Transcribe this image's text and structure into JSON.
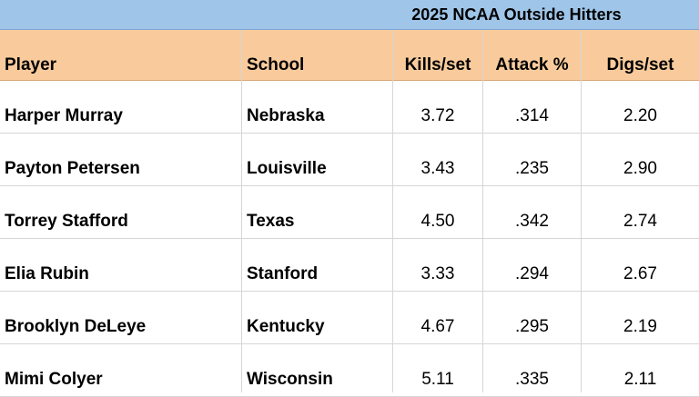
{
  "title": "2025 NCAA Outside Hitters",
  "headers": {
    "player": "Player",
    "school": "School",
    "kills": "Kills/set",
    "attack": "Attack %",
    "digs": "Digs/set"
  },
  "rows": [
    {
      "player": "Harper Murray",
      "school": "Nebraska",
      "kills": "3.72",
      "attack": ".314",
      "digs": "2.20"
    },
    {
      "player": "Payton Petersen",
      "school": "Louisville",
      "kills": "3.43",
      "attack": ".235",
      "digs": "2.90"
    },
    {
      "player": "Torrey Stafford",
      "school": "Texas",
      "kills": "4.50",
      "attack": ".342",
      "digs": "2.74"
    },
    {
      "player": "Elia Rubin",
      "school": "Stanford",
      "kills": "3.33",
      "attack": ".294",
      "digs": "2.67"
    },
    {
      "player": "Brooklyn DeLeye",
      "school": "Kentucky",
      "kills": "4.67",
      "attack": ".295",
      "digs": "2.19"
    },
    {
      "player": "Mimi Colyer",
      "school": "Wisconsin",
      "kills": "5.11",
      "attack": ".335",
      "digs": "2.11"
    }
  ]
}
